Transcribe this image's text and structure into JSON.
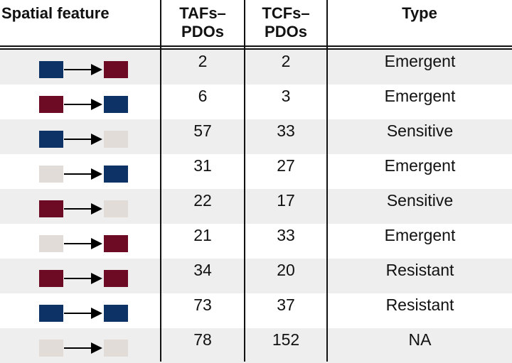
{
  "colors": {
    "blue": "#0d3266",
    "red": "#6e0b24",
    "gray": "#e2dcd8"
  },
  "headers": {
    "feature": "Spatial feature",
    "tafs_line1": "TAFs–",
    "tafs_line2": "PDOs",
    "tcfs_line1": "TCFs–",
    "tcfs_line2": "PDOs",
    "type": "Type"
  },
  "rows": [
    {
      "from": "blue",
      "to": "red",
      "tafs": "2",
      "tcfs": "2",
      "type": "Emergent"
    },
    {
      "from": "red",
      "to": "blue",
      "tafs": "6",
      "tcfs": "3",
      "type": "Emergent"
    },
    {
      "from": "blue",
      "to": "gray",
      "tafs": "57",
      "tcfs": "33",
      "type": "Sensitive"
    },
    {
      "from": "gray",
      "to": "blue",
      "tafs": "31",
      "tcfs": "27",
      "type": "Emergent"
    },
    {
      "from": "red",
      "to": "gray",
      "tafs": "22",
      "tcfs": "17",
      "type": "Sensitive"
    },
    {
      "from": "gray",
      "to": "red",
      "tafs": "21",
      "tcfs": "33",
      "type": "Emergent"
    },
    {
      "from": "red",
      "to": "red",
      "tafs": "34",
      "tcfs": "20",
      "type": "Resistant"
    },
    {
      "from": "blue",
      "to": "blue",
      "tafs": "73",
      "tcfs": "37",
      "type": "Resistant"
    },
    {
      "from": "gray",
      "to": "gray",
      "tafs": "78",
      "tcfs": "152",
      "type": "NA"
    }
  ]
}
